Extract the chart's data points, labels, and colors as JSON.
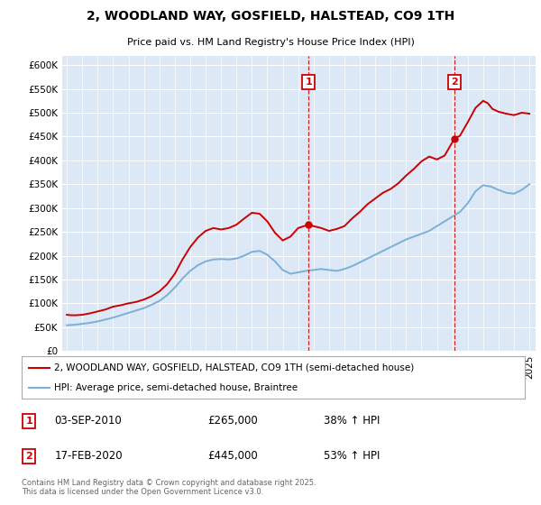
{
  "title": "2, WOODLAND WAY, GOSFIELD, HALSTEAD, CO9 1TH",
  "subtitle": "Price paid vs. HM Land Registry's House Price Index (HPI)",
  "ylim": [
    0,
    620000
  ],
  "yticks": [
    0,
    50000,
    100000,
    150000,
    200000,
    250000,
    300000,
    350000,
    400000,
    450000,
    500000,
    550000,
    600000
  ],
  "ytick_labels": [
    "£0",
    "£50K",
    "£100K",
    "£150K",
    "£200K",
    "£250K",
    "£300K",
    "£350K",
    "£400K",
    "£450K",
    "£500K",
    "£550K",
    "£600K"
  ],
  "xlim_start": 1994.7,
  "xlim_end": 2025.4,
  "background_color": "#ffffff",
  "plot_bg_color": "#dce8f5",
  "red_color": "#cc0000",
  "blue_color": "#7ab0d8",
  "event1_x": 2010.67,
  "event1_label": "1",
  "event1_price": "£265,000",
  "event1_date": "03-SEP-2010",
  "event1_pct": "38% ↑ HPI",
  "event2_x": 2020.12,
  "event2_label": "2",
  "event2_price": "£445,000",
  "event2_date": "17-FEB-2020",
  "event2_pct": "53% ↑ HPI",
  "legend_line1": "2, WOODLAND WAY, GOSFIELD, HALSTEAD, CO9 1TH (semi-detached house)",
  "legend_line2": "HPI: Average price, semi-detached house, Braintree",
  "footer": "Contains HM Land Registry data © Crown copyright and database right 2025.\nThis data is licensed under the Open Government Licence v3.0.",
  "red_years": [
    1995.0,
    1995.3,
    1995.6,
    1996.0,
    1996.5,
    1997.0,
    1997.5,
    1998.0,
    1998.5,
    1999.0,
    1999.5,
    2000.0,
    2000.5,
    2001.0,
    2001.5,
    2002.0,
    2002.5,
    2003.0,
    2003.5,
    2004.0,
    2004.5,
    2005.0,
    2005.5,
    2006.0,
    2006.5,
    2007.0,
    2007.5,
    2008.0,
    2008.5,
    2009.0,
    2009.5,
    2010.0,
    2010.67,
    2011.0,
    2011.5,
    2012.0,
    2012.5,
    2013.0,
    2013.5,
    2014.0,
    2014.5,
    2015.0,
    2015.5,
    2016.0,
    2016.5,
    2017.0,
    2017.5,
    2018.0,
    2018.5,
    2019.0,
    2019.5,
    2020.0,
    2020.12,
    2020.5,
    2021.0,
    2021.5,
    2022.0,
    2022.3,
    2022.6,
    2023.0,
    2023.5,
    2024.0,
    2024.5,
    2025.0
  ],
  "red_values": [
    76000,
    75000,
    75000,
    76000,
    79000,
    83000,
    87000,
    93000,
    96000,
    100000,
    103000,
    108000,
    115000,
    125000,
    140000,
    162000,
    192000,
    218000,
    238000,
    252000,
    258000,
    255000,
    258000,
    265000,
    278000,
    290000,
    288000,
    272000,
    248000,
    232000,
    240000,
    258000,
    265000,
    262000,
    258000,
    252000,
    256000,
    262000,
    278000,
    292000,
    308000,
    320000,
    332000,
    340000,
    352000,
    368000,
    382000,
    398000,
    408000,
    402000,
    410000,
    438000,
    445000,
    452000,
    480000,
    510000,
    525000,
    520000,
    508000,
    502000,
    498000,
    495000,
    500000,
    498000
  ],
  "blue_years": [
    1995.0,
    1995.5,
    1996.0,
    1996.5,
    1997.0,
    1997.5,
    1998.0,
    1998.5,
    1999.0,
    1999.5,
    2000.0,
    2000.5,
    2001.0,
    2001.5,
    2002.0,
    2002.5,
    2003.0,
    2003.5,
    2004.0,
    2004.5,
    2005.0,
    2005.5,
    2006.0,
    2006.5,
    2007.0,
    2007.5,
    2008.0,
    2008.5,
    2009.0,
    2009.5,
    2010.0,
    2010.5,
    2011.0,
    2011.5,
    2012.0,
    2012.5,
    2013.0,
    2013.5,
    2014.0,
    2014.5,
    2015.0,
    2015.5,
    2016.0,
    2016.5,
    2017.0,
    2017.5,
    2018.0,
    2018.5,
    2019.0,
    2019.5,
    2020.0,
    2020.5,
    2021.0,
    2021.5,
    2022.0,
    2022.5,
    2023.0,
    2023.5,
    2024.0,
    2024.5,
    2025.0
  ],
  "blue_values": [
    54000,
    55000,
    57000,
    59000,
    62000,
    66000,
    70000,
    75000,
    80000,
    85000,
    90000,
    97000,
    105000,
    117000,
    133000,
    152000,
    168000,
    180000,
    188000,
    192000,
    193000,
    192000,
    194000,
    200000,
    208000,
    210000,
    202000,
    188000,
    170000,
    162000,
    165000,
    168000,
    170000,
    172000,
    170000,
    168000,
    172000,
    178000,
    186000,
    194000,
    202000,
    210000,
    218000,
    226000,
    234000,
    240000,
    246000,
    252000,
    262000,
    272000,
    282000,
    292000,
    310000,
    335000,
    348000,
    345000,
    338000,
    332000,
    330000,
    338000,
    350000
  ]
}
